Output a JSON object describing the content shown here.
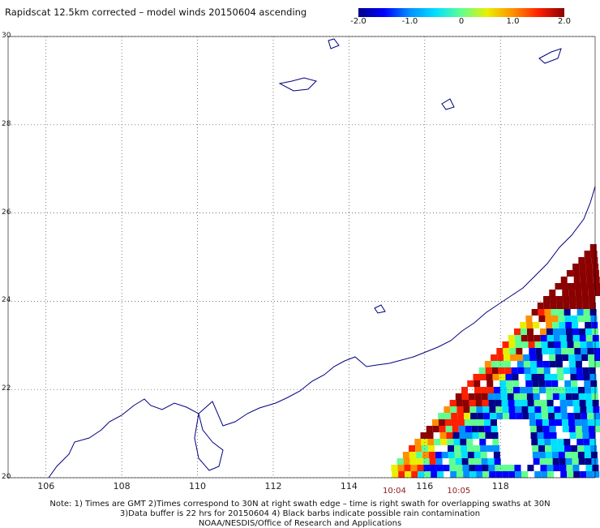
{
  "title": "Rapidscat 12.5km corrected – model winds 20150604 ascending",
  "colorbar": {
    "ticks": [
      "-2.0",
      "-1.0",
      "0",
      "1.0",
      "2.0"
    ],
    "tick_values": [
      -2.0,
      -1.0,
      0,
      1.0,
      2.0
    ],
    "colors": [
      "#00008b",
      "#0000ff",
      "#0090ff",
      "#00e0ff",
      "#60ff90",
      "#e8f000",
      "#ff9000",
      "#ff2000",
      "#8b0000"
    ]
  },
  "axes": {
    "lon_range": [
      105,
      120.5
    ],
    "lat_range": [
      20,
      30
    ],
    "lon_labels": [
      "106",
      "108",
      "110",
      "112",
      "114",
      "116",
      "118"
    ],
    "lon_values": [
      106,
      108,
      110,
      112,
      114,
      116,
      118
    ],
    "lat_labels": [
      "20",
      "22",
      "24",
      "26",
      "28",
      "30"
    ],
    "lat_values": [
      20,
      22,
      24,
      26,
      28,
      30
    ],
    "grid": true
  },
  "times": [
    {
      "label": "10:04",
      "lon": 115.2
    },
    {
      "label": "10:05",
      "lon": 116.9
    }
  ],
  "notes": [
    "Note: 1) Times are GMT 2)Times correspond to 30N at right swath edge – time is right swath for overlapping swaths at 30N",
    "3)Data buffer is 22 hrs for 20150604 4) Black barbs indicate possible rain contamination",
    "NOAA/NESDIS/Office of Research and Applications"
  ]
}
